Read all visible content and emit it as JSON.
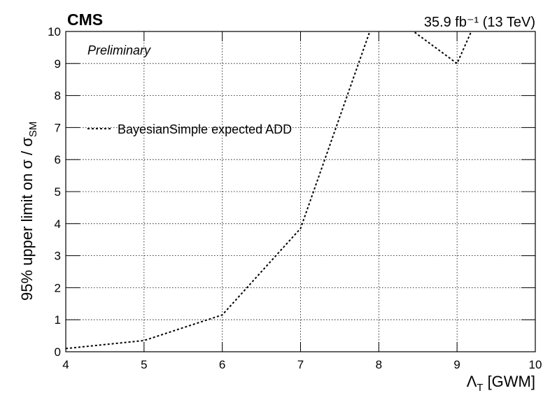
{
  "chart_data": {
    "type": "line",
    "experiment": "CMS",
    "status": "Preliminary",
    "lumi": "35.9 fb⁻¹ (13 TeV)",
    "x_label": [
      "Λ",
      "T",
      "[GWM]"
    ],
    "y_label": [
      "95% upper limit on σ / σ",
      "SM"
    ],
    "x": [
      4,
      5,
      6,
      7,
      8,
      9,
      10
    ],
    "series": [
      {
        "name": "BayesianSimple expected ADD",
        "color": "#000000",
        "dash": true,
        "values": [
          0.1,
          0.35,
          1.15,
          3.85,
          10.8,
          9,
          14.5
        ]
      }
    ],
    "xlim": [
      4,
      10
    ],
    "xticks": [
      4,
      5,
      6,
      7,
      8,
      9,
      10
    ],
    "ylim": [
      0,
      10
    ],
    "yticks": [
      0,
      1,
      2,
      3,
      4,
      5,
      6,
      7,
      8,
      9,
      10
    ],
    "grid": true,
    "legend": "upper left"
  }
}
